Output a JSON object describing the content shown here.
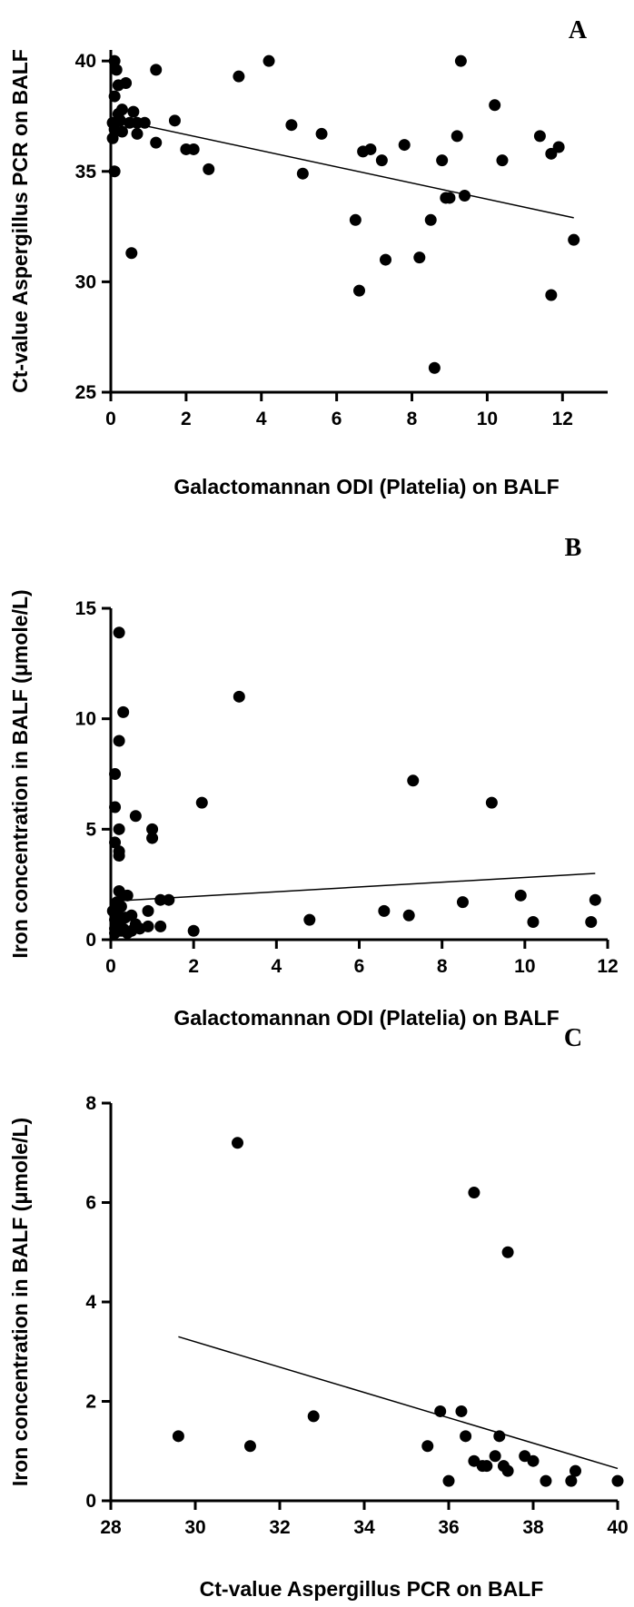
{
  "chart_data": [
    {
      "type": "scatter",
      "panel": "A",
      "xlabel": "Galactomannan ODI (Platelia) on BALF",
      "ylabel": "Ct-value Aspergillus PCR on BALF",
      "xlim": [
        0,
        13.2
      ],
      "ylim": [
        25,
        40.5
      ],
      "xticks": [
        0,
        2,
        4,
        6,
        8,
        10,
        12
      ],
      "yticks": [
        25,
        30,
        35,
        40
      ],
      "grid": false,
      "points": [
        [
          0.1,
          40
        ],
        [
          0.15,
          39.6
        ],
        [
          0.2,
          38.9
        ],
        [
          0.4,
          39
        ],
        [
          0.1,
          38.4
        ],
        [
          0.05,
          37.2
        ],
        [
          0.1,
          36.9
        ],
        [
          0.05,
          36.5
        ],
        [
          0.1,
          35
        ],
        [
          0.2,
          37.6
        ],
        [
          0.25,
          37.3
        ],
        [
          0.3,
          37.8
        ],
        [
          0.3,
          36.8
        ],
        [
          0.5,
          37.2
        ],
        [
          0.6,
          37.7
        ],
        [
          0.7,
          37.2
        ],
        [
          0.7,
          36.7
        ],
        [
          0.9,
          37.2
        ],
        [
          1.2,
          39.6
        ],
        [
          1.2,
          36.3
        ],
        [
          1.7,
          37.3
        ],
        [
          2.0,
          36.0
        ],
        [
          2.2,
          36.0
        ],
        [
          2.6,
          35.1
        ],
        [
          0.55,
          31.3
        ],
        [
          3.4,
          39.3
        ],
        [
          4.2,
          40
        ],
        [
          4.8,
          37.1
        ],
        [
          5.1,
          34.9
        ],
        [
          5.6,
          36.7
        ],
        [
          6.5,
          32.8
        ],
        [
          6.6,
          29.6
        ],
        [
          6.7,
          35.9
        ],
        [
          6.9,
          36.0
        ],
        [
          7.2,
          35.5
        ],
        [
          7.3,
          31.0
        ],
        [
          7.8,
          36.2
        ],
        [
          8.2,
          31.1
        ],
        [
          8.5,
          32.8
        ],
        [
          8.6,
          26.1
        ],
        [
          8.8,
          35.5
        ],
        [
          8.9,
          33.8
        ],
        [
          9.0,
          33.8
        ],
        [
          9.2,
          36.6
        ],
        [
          9.3,
          40
        ],
        [
          9.4,
          33.9
        ],
        [
          10.2,
          38.0
        ],
        [
          10.4,
          35.5
        ],
        [
          11.4,
          36.6
        ],
        [
          11.7,
          29.4
        ],
        [
          11.7,
          35.8
        ],
        [
          11.9,
          36.1
        ],
        [
          12.3,
          31.9
        ]
      ],
      "trendline": [
        [
          0,
          37.4
        ],
        [
          12.3,
          32.9
        ]
      ]
    },
    {
      "type": "scatter",
      "panel": "B",
      "xlabel": "Galactomannan ODI (Platelia) on BALF",
      "ylabel": "Iron concentration in BALF (μmole/L)",
      "xlim": [
        0,
        12
      ],
      "ylim": [
        0,
        15
      ],
      "xticks": [
        0,
        2,
        4,
        6,
        8,
        10,
        12
      ],
      "yticks": [
        0,
        5,
        10,
        15
      ],
      "grid": false,
      "points": [
        [
          0.2,
          13.9
        ],
        [
          0.3,
          10.3
        ],
        [
          0.2,
          9.0
        ],
        [
          0.1,
          7.5
        ],
        [
          0.1,
          6.0
        ],
        [
          0.1,
          4.4
        ],
        [
          0.2,
          4.0
        ],
        [
          0.2,
          3.8
        ],
        [
          0.2,
          5.0
        ],
        [
          0.6,
          5.6
        ],
        [
          1.0,
          5.0
        ],
        [
          1.0,
          4.6
        ],
        [
          3.1,
          11.0
        ],
        [
          2.2,
          6.2
        ],
        [
          7.3,
          7.2
        ],
        [
          9.2,
          6.2
        ],
        [
          0.05,
          1.3
        ],
        [
          0.1,
          0.9
        ],
        [
          0.1,
          0.5
        ],
        [
          0.15,
          1.7
        ],
        [
          0.15,
          1.2
        ],
        [
          0.2,
          2.2
        ],
        [
          0.2,
          0.7
        ],
        [
          0.25,
          1.5
        ],
        [
          0.3,
          2.0
        ],
        [
          0.3,
          0.5
        ],
        [
          0.35,
          1.0
        ],
        [
          0.4,
          2.0
        ],
        [
          0.4,
          0.3
        ],
        [
          0.5,
          1.1
        ],
        [
          0.5,
          0.4
        ],
        [
          0.6,
          0.7
        ],
        [
          0.7,
          0.5
        ],
        [
          0.9,
          1.3
        ],
        [
          0.9,
          0.6
        ],
        [
          1.2,
          1.8
        ],
        [
          1.2,
          0.6
        ],
        [
          1.4,
          1.8
        ],
        [
          2.0,
          0.4
        ],
        [
          4.8,
          0.9
        ],
        [
          6.6,
          1.3
        ],
        [
          7.2,
          1.1
        ],
        [
          8.5,
          1.7
        ],
        [
          9.9,
          2.0
        ],
        [
          10.2,
          0.8
        ],
        [
          11.6,
          0.8
        ],
        [
          11.7,
          1.8
        ],
        [
          0.1,
          0.3
        ],
        [
          0.25,
          0.4
        ]
      ],
      "trendline": [
        [
          0.1,
          1.75
        ],
        [
          11.7,
          3.0
        ]
      ]
    },
    {
      "type": "scatter",
      "panel": "C",
      "xlabel": "Ct-value Aspergillus PCR on BALF",
      "ylabel": "Iron concentration in BALF (μmole/L)",
      "xlim": [
        28,
        40
      ],
      "ylim": [
        0,
        8
      ],
      "xticks": [
        28,
        30,
        32,
        34,
        36,
        38,
        40
      ],
      "yticks": [
        0,
        2,
        4,
        6,
        8
      ],
      "grid": false,
      "points": [
        [
          29.6,
          1.3
        ],
        [
          31.0,
          7.2
        ],
        [
          31.3,
          1.1
        ],
        [
          32.8,
          1.7
        ],
        [
          35.5,
          1.1
        ],
        [
          35.8,
          1.8
        ],
        [
          36.0,
          0.4
        ],
        [
          36.3,
          1.8
        ],
        [
          36.4,
          1.3
        ],
        [
          36.6,
          0.8
        ],
        [
          36.6,
          6.2
        ],
        [
          36.8,
          0.7
        ],
        [
          36.9,
          0.7
        ],
        [
          37.1,
          0.9
        ],
        [
          37.2,
          1.3
        ],
        [
          37.3,
          0.7
        ],
        [
          37.4,
          0.6
        ],
        [
          37.4,
          5.0
        ],
        [
          37.8,
          0.9
        ],
        [
          38.0,
          0.8
        ],
        [
          38.3,
          0.4
        ],
        [
          38.9,
          0.4
        ],
        [
          39.0,
          0.6
        ],
        [
          40.0,
          0.4
        ]
      ],
      "trendline": [
        [
          29.6,
          3.3
        ],
        [
          40,
          0.65
        ]
      ]
    }
  ],
  "panel_labels": {
    "A": "A",
    "B": "B",
    "C": "C"
  }
}
